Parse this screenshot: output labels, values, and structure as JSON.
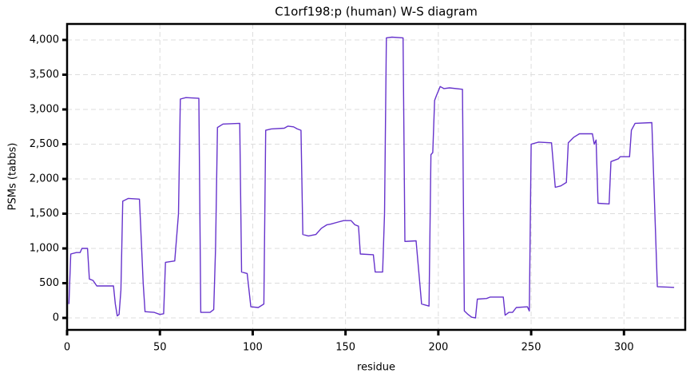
{
  "chart_data": {
    "type": "line",
    "title": "C1orf198:p (human) W-S diagram",
    "x_label": "residue",
    "y_label": "PSMs (tabbs)",
    "color": "#6633cc",
    "grid": true,
    "x": [
      1,
      2,
      5,
      7,
      8,
      11,
      12,
      14,
      16,
      25,
      26,
      27,
      28,
      29,
      30,
      33,
      39,
      41,
      42,
      47,
      50,
      52,
      53,
      58,
      60,
      61,
      64,
      71,
      72,
      77,
      79,
      80,
      81,
      84,
      93,
      94,
      97,
      99,
      103,
      106,
      107,
      110,
      117,
      119,
      122,
      124,
      126,
      127,
      130,
      134,
      137,
      140,
      142,
      146,
      149,
      153,
      155,
      157,
      158,
      165,
      166,
      170,
      171,
      172,
      175,
      181,
      182,
      188,
      191,
      195,
      196,
      197,
      198,
      199,
      201,
      203,
      206,
      213,
      214,
      216,
      218,
      220,
      221,
      226,
      228,
      235,
      236,
      238,
      240,
      242,
      248,
      249,
      250,
      254,
      261,
      263,
      266,
      269,
      270,
      273,
      276,
      283,
      284,
      285,
      286,
      292,
      293,
      297,
      298,
      303,
      304,
      306,
      315,
      318,
      327
    ],
    "values": [
      200,
      920,
      940,
      940,
      1000,
      1000,
      560,
      540,
      460,
      460,
      200,
      30,
      50,
      400,
      1680,
      1720,
      1710,
      500,
      90,
      80,
      50,
      60,
      800,
      820,
      1500,
      3150,
      3170,
      3160,
      80,
      80,
      120,
      1000,
      2740,
      2790,
      2800,
      660,
      640,
      160,
      150,
      200,
      2700,
      2720,
      2730,
      2760,
      2750,
      2720,
      2700,
      1200,
      1180,
      1200,
      1290,
      1340,
      1350,
      1380,
      1400,
      1400,
      1340,
      1320,
      920,
      910,
      660,
      660,
      1500,
      4030,
      4040,
      4030,
      1100,
      1110,
      200,
      170,
      2350,
      2380,
      3130,
      3200,
      3330,
      3300,
      3310,
      3290,
      100,
      50,
      10,
      0,
      270,
      280,
      300,
      300,
      40,
      80,
      80,
      150,
      160,
      100,
      2500,
      2530,
      2520,
      1880,
      1900,
      1950,
      2520,
      2600,
      2650,
      2650,
      2500,
      2560,
      1650,
      1640,
      2250,
      2290,
      2320,
      2320,
      2700,
      2800,
      2810,
      450,
      440
    ],
    "xlim": [
      0,
      333
    ],
    "ylim": [
      -172,
      4230
    ],
    "xticks": [
      0,
      50,
      100,
      150,
      200,
      250,
      300
    ],
    "yticks": [
      0,
      500,
      {
        "value": 1000,
        "label": "1,000"
      },
      {
        "value": 1500,
        "label": "1,500"
      },
      {
        "value": 2000,
        "label": "2,000"
      },
      {
        "value": 2500,
        "label": "2,500"
      },
      {
        "value": 3000,
        "label": "3,000"
      },
      {
        "value": 3500,
        "label": "3,500"
      },
      {
        "value": 4000,
        "label": "4,000"
      }
    ]
  }
}
